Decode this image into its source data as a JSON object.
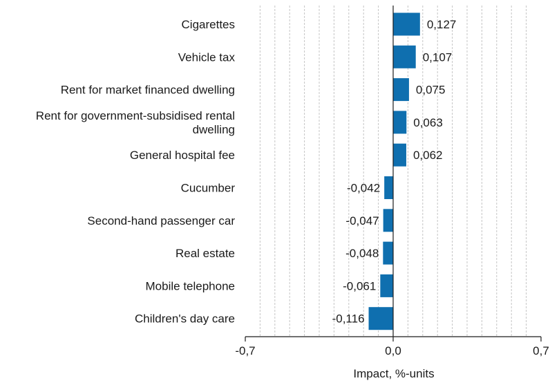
{
  "chart_data": {
    "type": "bar",
    "orientation": "horizontal",
    "categories": [
      "Cigarettes",
      "Vehicle tax",
      "Rent for market financed dwelling",
      "Rent for government-subsidised rental dwelling",
      "General hospital fee",
      "Cucumber",
      "Second-hand passenger car",
      "Real estate",
      "Mobile telephone",
      "Children's day care"
    ],
    "category_lines": [
      [
        "Cigarettes"
      ],
      [
        "Vehicle tax"
      ],
      [
        "Rent for market financed dwelling"
      ],
      [
        "Rent for government-subsidised rental",
        "dwelling"
      ],
      [
        "General hospital fee"
      ],
      [
        "Cucumber"
      ],
      [
        "Second-hand passenger car"
      ],
      [
        "Real estate"
      ],
      [
        "Mobile telephone"
      ],
      [
        "Children's day care"
      ]
    ],
    "values": [
      0.127,
      0.107,
      0.075,
      0.063,
      0.062,
      -0.042,
      -0.047,
      -0.048,
      -0.061,
      -0.116
    ],
    "value_labels": [
      "0,127",
      "0,107",
      "0,075",
      "0,063",
      "0,062",
      "-0,042",
      "-0,047",
      "-0,048",
      "-0,061",
      "-0,116"
    ],
    "xlim": [
      -0.7,
      0.7
    ],
    "xticks": [
      -0.7,
      0.0,
      0.7
    ],
    "xtick_labels": [
      "-0,7",
      "0,0",
      "0,7"
    ],
    "minor_gridline_step": 0.07,
    "xlabel": "Impact, %-units",
    "ylabel": "",
    "title": "",
    "grid": "vertical dashed",
    "bar_color": "#0f6faf"
  }
}
